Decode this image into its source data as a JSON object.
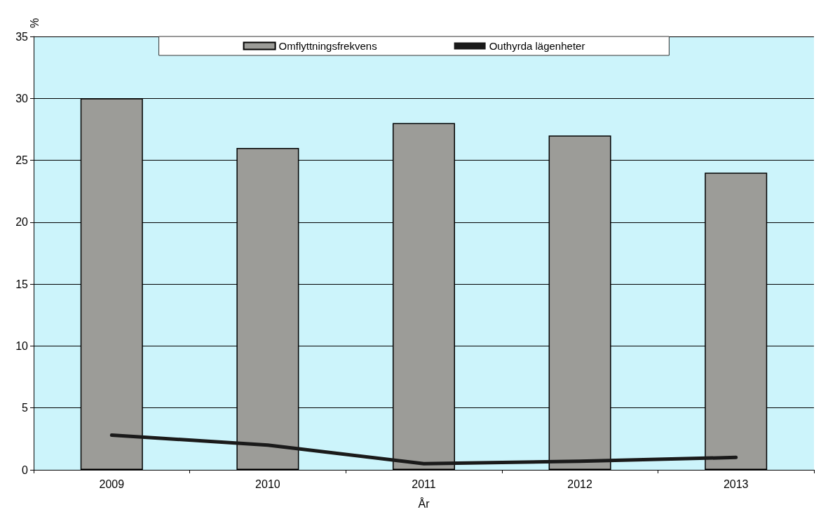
{
  "chart_data": {
    "type": "bar",
    "xlabel": "År",
    "ylabel": "%",
    "categories": [
      "2009",
      "2010",
      "2011",
      "2012",
      "2013"
    ],
    "series": [
      {
        "name": "Omflyttningsfrekvens",
        "color": "#9c9c98",
        "values": [
          30,
          26,
          28,
          27,
          24
        ]
      },
      {
        "name": "Outhyrda lägenheter",
        "type": "line",
        "color": "#1a1a1a",
        "values": [
          2.8,
          2.0,
          0.5,
          0.7,
          1.0
        ]
      }
    ],
    "ylim": [
      0,
      35
    ],
    "yticks": [
      0,
      5,
      10,
      15,
      20,
      25,
      30,
      35
    ],
    "grid": "y",
    "legend": "top",
    "marker": "none",
    "line_style": "solid"
  }
}
